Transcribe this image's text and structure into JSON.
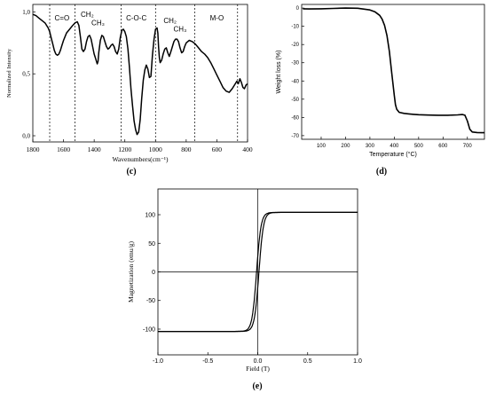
{
  "chart_data": [
    {
      "type": "line",
      "panel_label": "(c)",
      "xlabel": "Wavenumbers(cm⁻¹)",
      "ylabel": "Normalized Intensity",
      "xlim": [
        1800,
        400
      ],
      "ylim": [
        -0.05,
        1.06
      ],
      "x_ticks": [
        1800,
        1600,
        1400,
        1200,
        1000,
        800,
        600,
        400
      ],
      "y_ticks": [
        {
          "value": 0.0,
          "label": "0,0"
        },
        {
          "value": 0.5,
          "label": "0,5"
        },
        {
          "value": 1.0,
          "label": "1,0"
        }
      ],
      "grid": false,
      "region_dividers": [
        1690,
        1525,
        1225,
        1000,
        745,
        465
      ],
      "region_labels": [
        {
          "text": "C=O",
          "x": 1610,
          "y": 0.93
        },
        {
          "text": "CH₂",
          "x": 1445,
          "y": 0.96
        },
        {
          "text": "CH₃",
          "x": 1375,
          "y": 0.89
        },
        {
          "text": "C-O-C",
          "x": 1125,
          "y": 0.93
        },
        {
          "text": "CH₂",
          "x": 905,
          "y": 0.91
        },
        {
          "text": "CH₃",
          "x": 840,
          "y": 0.84
        },
        {
          "text": "M-O",
          "x": 600,
          "y": 0.93
        }
      ],
      "series": [
        {
          "x": [
            1800,
            1780,
            1760,
            1740,
            1720,
            1700,
            1690,
            1680,
            1670,
            1660,
            1650,
            1640,
            1630,
            1620,
            1610,
            1600,
            1590,
            1580,
            1560,
            1540,
            1525,
            1510,
            1500,
            1490,
            1480,
            1470,
            1460,
            1450,
            1440,
            1430,
            1420,
            1410,
            1400,
            1390,
            1385,
            1380,
            1375,
            1370,
            1360,
            1350,
            1340,
            1330,
            1320,
            1310,
            1300,
            1290,
            1280,
            1270,
            1260,
            1250,
            1240,
            1230,
            1220,
            1210,
            1200,
            1190,
            1180,
            1170,
            1160,
            1150,
            1140,
            1130,
            1120,
            1110,
            1100,
            1090,
            1080,
            1070,
            1060,
            1050,
            1040,
            1030,
            1020,
            1010,
            1000,
            990,
            985,
            980,
            975,
            970,
            960,
            950,
            940,
            930,
            920,
            910,
            900,
            890,
            880,
            870,
            860,
            850,
            840,
            830,
            820,
            810,
            800,
            780,
            760,
            740,
            720,
            700,
            680,
            660,
            640,
            620,
            600,
            580,
            560,
            540,
            520,
            500,
            480,
            470,
            460,
            450,
            440,
            430,
            420,
            410,
            400
          ],
          "y": [
            0.98,
            0.97,
            0.95,
            0.93,
            0.91,
            0.87,
            0.84,
            0.79,
            0.74,
            0.69,
            0.66,
            0.65,
            0.66,
            0.69,
            0.73,
            0.77,
            0.8,
            0.83,
            0.86,
            0.89,
            0.91,
            0.92,
            0.89,
            0.8,
            0.7,
            0.68,
            0.7,
            0.76,
            0.8,
            0.81,
            0.78,
            0.72,
            0.66,
            0.62,
            0.6,
            0.58,
            0.6,
            0.67,
            0.77,
            0.81,
            0.8,
            0.76,
            0.72,
            0.7,
            0.71,
            0.73,
            0.74,
            0.72,
            0.68,
            0.66,
            0.7,
            0.79,
            0.85,
            0.86,
            0.84,
            0.8,
            0.7,
            0.55,
            0.38,
            0.24,
            0.12,
            0.05,
            0.01,
            0.03,
            0.13,
            0.3,
            0.45,
            0.53,
            0.57,
            0.54,
            0.47,
            0.48,
            0.65,
            0.78,
            0.86,
            0.87,
            0.83,
            0.72,
            0.63,
            0.59,
            0.61,
            0.66,
            0.7,
            0.71,
            0.67,
            0.64,
            0.68,
            0.72,
            0.76,
            0.78,
            0.78,
            0.76,
            0.71,
            0.67,
            0.68,
            0.72,
            0.75,
            0.77,
            0.76,
            0.74,
            0.71,
            0.68,
            0.66,
            0.63,
            0.59,
            0.54,
            0.49,
            0.44,
            0.39,
            0.36,
            0.35,
            0.38,
            0.42,
            0.44,
            0.42,
            0.46,
            0.43,
            0.39,
            0.38,
            0.41,
            0.42
          ]
        }
      ]
    },
    {
      "type": "line",
      "panel_label": "(d)",
      "xlabel": "Temperature (°C)",
      "ylabel": "Weight loss (%)",
      "xlim": [
        20,
        770
      ],
      "ylim": [
        -72,
        2
      ],
      "x_ticks": [
        100,
        200,
        300,
        400,
        500,
        600,
        700
      ],
      "y_ticks": [
        0,
        -10,
        -20,
        -30,
        -40,
        -50,
        -60,
        -70
      ],
      "grid": false,
      "series": [
        {
          "x": [
            25,
            50,
            100,
            150,
            200,
            250,
            300,
            320,
            340,
            350,
            360,
            370,
            380,
            390,
            400,
            405,
            410,
            420,
            440,
            460,
            480,
            500,
            540,
            580,
            620,
            660,
            680,
            690,
            700,
            710,
            720,
            740,
            760,
            770
          ],
          "y": [
            -0.4,
            -0.5,
            -0.4,
            -0.2,
            0.0,
            -0.1,
            -1.0,
            -2.0,
            -4.0,
            -6.0,
            -9.5,
            -15.0,
            -24.0,
            -36.0,
            -48.0,
            -53.0,
            -55.5,
            -57.2,
            -57.8,
            -58.1,
            -58.3,
            -58.5,
            -58.7,
            -58.8,
            -58.8,
            -58.6,
            -58.4,
            -58.8,
            -62.0,
            -66.5,
            -68.0,
            -68.3,
            -68.4,
            -68.4
          ]
        }
      ]
    },
    {
      "type": "line",
      "panel_label": "(e)",
      "xlabel": "Field (T)",
      "ylabel": "Magnetization (emu/g)",
      "xlim": [
        -1.0,
        1.0
      ],
      "ylim": [
        -145,
        145
      ],
      "x_ticks": [
        -1.0,
        -0.5,
        0.0,
        0.5,
        1.0
      ],
      "y_ticks": [
        -100,
        -50,
        0,
        50,
        100
      ],
      "grid": false,
      "ms": 104,
      "coercivity": 0.012,
      "field_scale": 0.045,
      "series": [
        {
          "name": "",
          "type": "hysteresis"
        }
      ]
    }
  ]
}
